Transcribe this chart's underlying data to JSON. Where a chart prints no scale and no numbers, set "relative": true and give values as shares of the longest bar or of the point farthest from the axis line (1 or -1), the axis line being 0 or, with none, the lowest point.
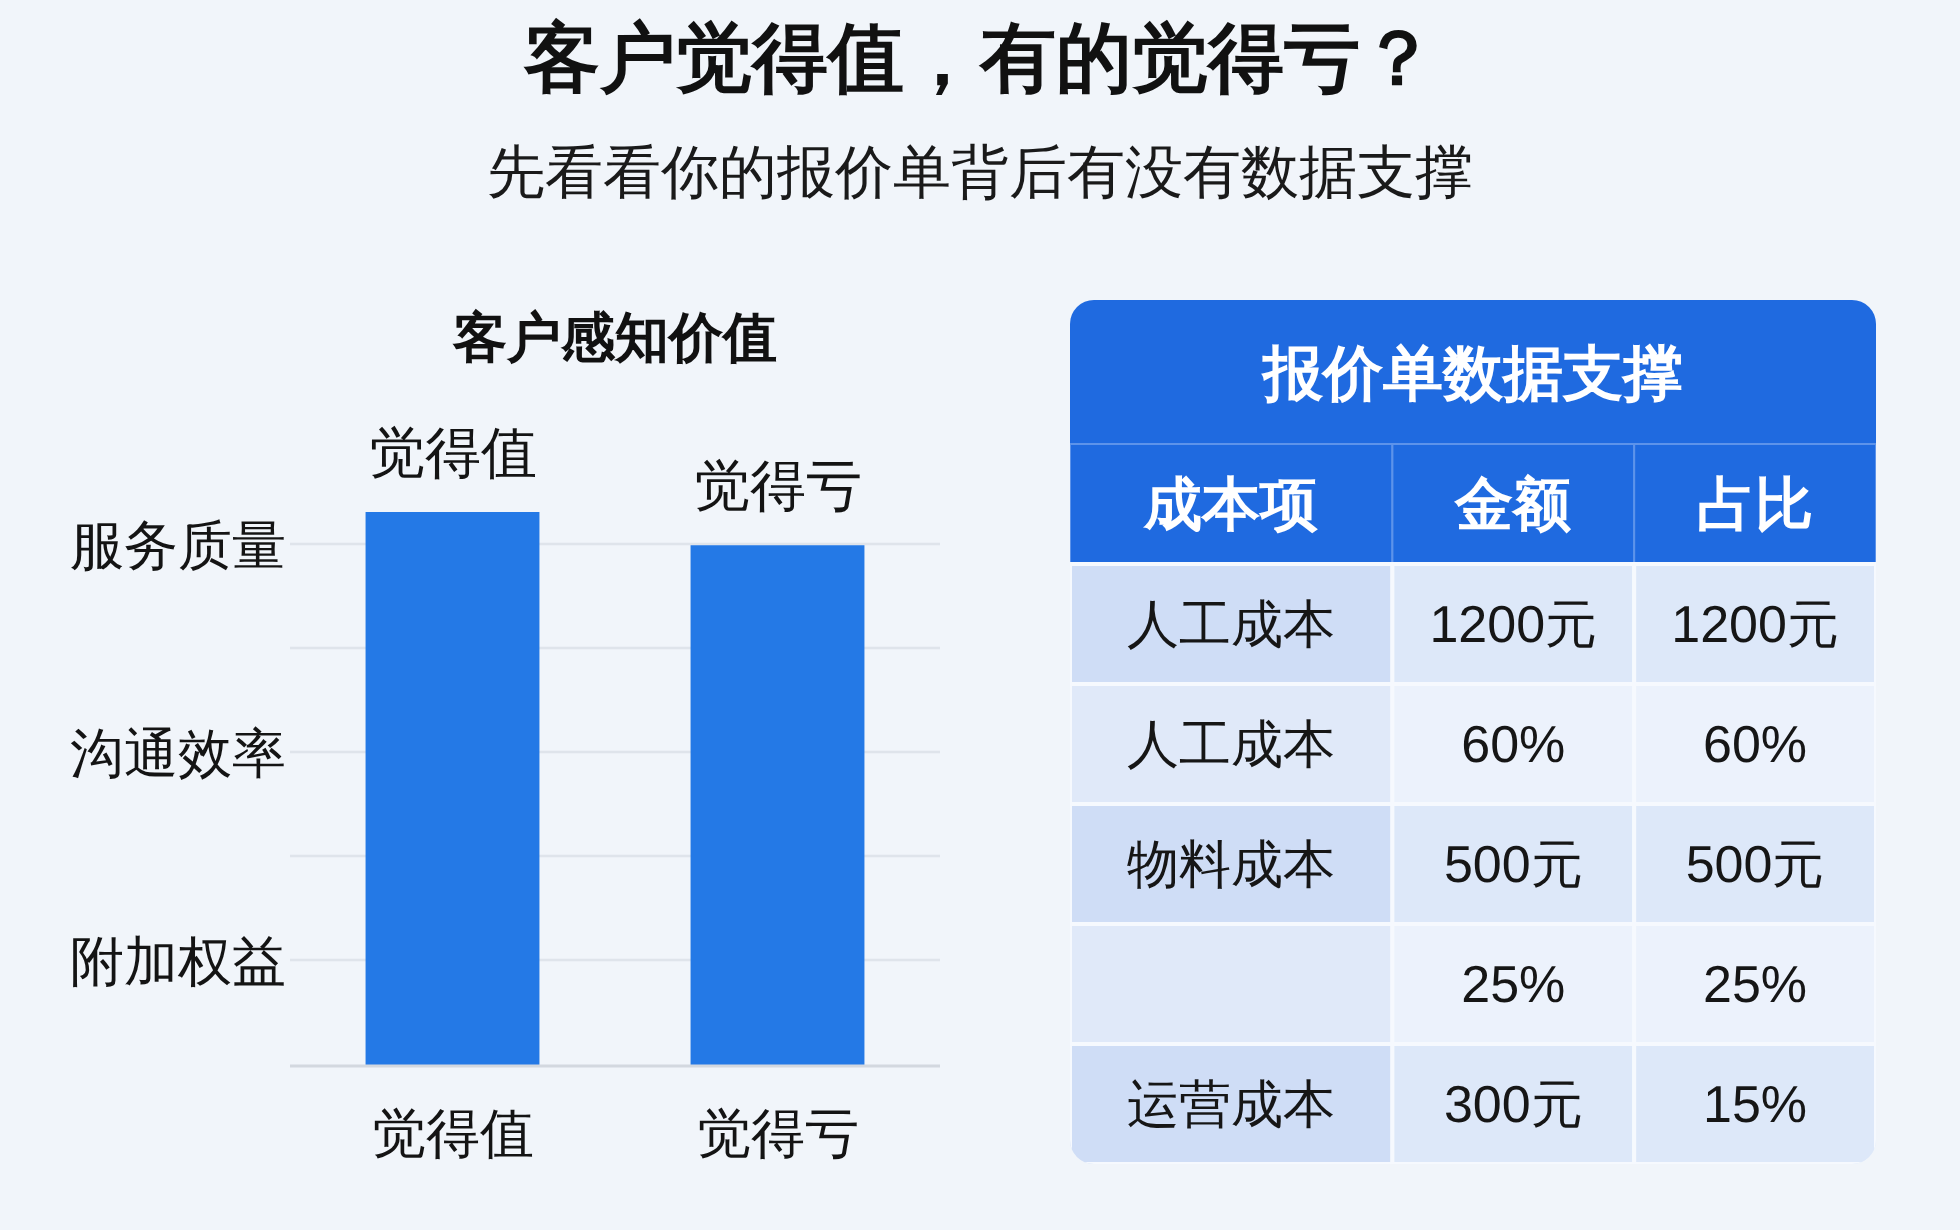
{
  "chart_data": [
    {
      "type": "other",
      "title": "客户觉得值，有的觉得亏？",
      "subtitle": "先看看你的报价单背后有没有数据支撑"
    },
    {
      "type": "bar",
      "title": "客户感知价值",
      "categories": [
        "觉得值",
        "觉得亏"
      ],
      "values": [
        1,
        0.94
      ],
      "relative": true,
      "color": "#2479e6",
      "grid": "y",
      "annotations": [
        {
          "text": "觉得值",
          "x": "觉得值",
          "y": 1
        },
        {
          "text": "觉得亏",
          "x": "觉得亏",
          "y": 0.94
        },
        "服务质量",
        "沟通效率",
        "附加权益"
      ]
    },
    {
      "type": "other",
      "title": "报价单数据支撑",
      "color": "#1f6ae0",
      "categories": [
        "成本项",
        "金额",
        "占比"
      ],
      "cell_labels": [
        [
          "人工成本",
          "1200元",
          "1200元"
        ],
        [
          "人工成本",
          "60%",
          "60%"
        ],
        [
          "物料成本",
          "500元",
          "500元"
        ],
        [
          null,
          "25%",
          "25%"
        ],
        [
          "运营成本",
          "300元",
          "15%"
        ]
      ]
    }
  ]
}
